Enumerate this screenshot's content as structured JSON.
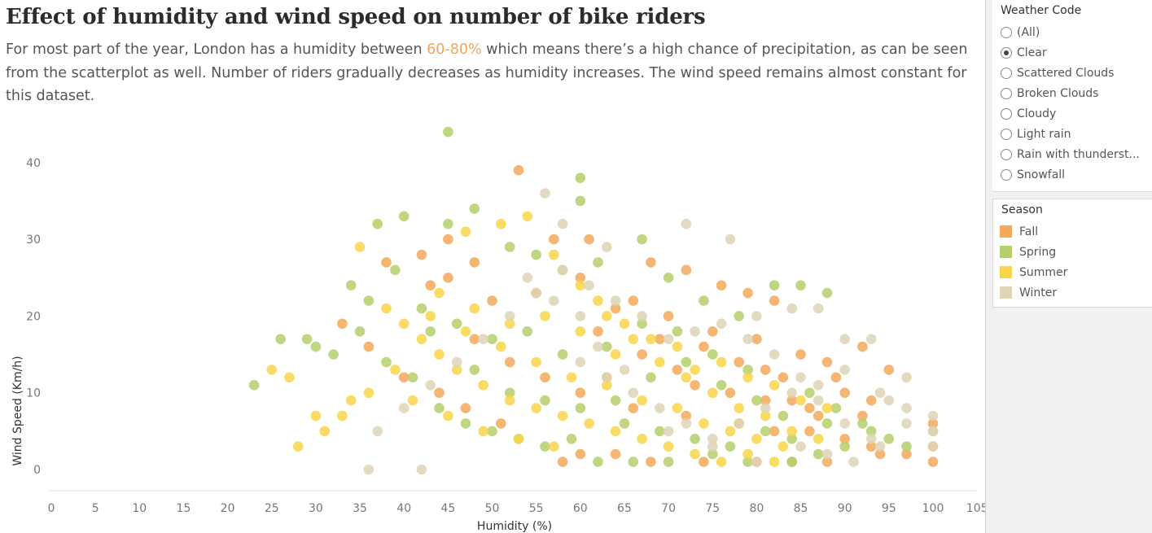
{
  "title": "Effect of humidity and wind speed on number of bike riders",
  "subtitle": {
    "before": "For most part of the year, London has a humidity between ",
    "highlight": "60-80%",
    "after": " which means there’s a high chance of precipitation, as can be seen from the scatterplot as well. Number of riders gradually decreases as humidity increases. The wind speed remains almost constant for this dataset."
  },
  "colors": {
    "highlight": "#F2A45C",
    "Fall": "#F4A95A",
    "Spring": "#B5CF6B",
    "Summer": "#F8D54A",
    "Winter": "#DED5B6"
  },
  "weather_filter": {
    "title": "Weather Code",
    "selected": "Clear",
    "options": [
      "(All)",
      "Clear",
      "Scattered Clouds",
      "Broken Clouds",
      "Cloudy",
      "Light rain",
      "Rain with thunderst...",
      "Snowfall"
    ]
  },
  "season_legend": {
    "title": "Season",
    "items": [
      "Fall",
      "Spring",
      "Summer",
      "Winter"
    ]
  },
  "chart_data": {
    "type": "scatter",
    "xlabel": "Humidity (%)",
    "ylabel": "Wind Speed (Km/h)",
    "xlim": [
      0,
      105
    ],
    "ylim": [
      0,
      45
    ],
    "xticks": [
      0,
      5,
      10,
      15,
      20,
      25,
      30,
      35,
      40,
      45,
      50,
      55,
      60,
      65,
      70,
      75,
      80,
      85,
      90,
      95,
      100,
      105
    ],
    "yticks": [
      0,
      10,
      20,
      30,
      40
    ],
    "grid": false,
    "legend": "right",
    "series": [
      {
        "name": "Fall",
        "points": [
          [
            53,
            39
          ],
          [
            57,
            30
          ],
          [
            61,
            30
          ],
          [
            68,
            27
          ],
          [
            72,
            26
          ],
          [
            76,
            24
          ],
          [
            79,
            23
          ],
          [
            82,
            22
          ],
          [
            42,
            28
          ],
          [
            38,
            27
          ],
          [
            45,
            25
          ],
          [
            50,
            22
          ],
          [
            55,
            23
          ],
          [
            60,
            25
          ],
          [
            64,
            21
          ],
          [
            70,
            20
          ],
          [
            75,
            18
          ],
          [
            80,
            17
          ],
          [
            85,
            15
          ],
          [
            88,
            14
          ],
          [
            90,
            10
          ],
          [
            93,
            9
          ],
          [
            95,
            13
          ],
          [
            100,
            6
          ],
          [
            100,
            3
          ],
          [
            100,
            1
          ],
          [
            97,
            2
          ],
          [
            94,
            2
          ],
          [
            88,
            1
          ],
          [
            84,
            1
          ],
          [
            80,
            1
          ],
          [
            74,
            1
          ],
          [
            68,
            1
          ],
          [
            64,
            2
          ],
          [
            60,
            2
          ],
          [
            58,
            1
          ],
          [
            48,
            17
          ],
          [
            52,
            14
          ],
          [
            56,
            12
          ],
          [
            60,
            10
          ],
          [
            66,
            8
          ],
          [
            72,
            7
          ],
          [
            78,
            6
          ],
          [
            82,
            5
          ],
          [
            86,
            8
          ],
          [
            89,
            12
          ],
          [
            92,
            16
          ],
          [
            33,
            19
          ],
          [
            36,
            16
          ],
          [
            40,
            12
          ],
          [
            44,
            10
          ],
          [
            47,
            8
          ],
          [
            51,
            6
          ],
          [
            63,
            12
          ],
          [
            67,
            15
          ],
          [
            71,
            13
          ],
          [
            73,
            11
          ],
          [
            77,
            10
          ],
          [
            81,
            9
          ],
          [
            83,
            12
          ],
          [
            87,
            7
          ],
          [
            92,
            7
          ],
          [
            45,
            30
          ],
          [
            48,
            27
          ],
          [
            43,
            24
          ],
          [
            62,
            18
          ],
          [
            66,
            22
          ],
          [
            69,
            17
          ],
          [
            74,
            16
          ],
          [
            78,
            14
          ],
          [
            81,
            13
          ],
          [
            84,
            9
          ],
          [
            86,
            5
          ],
          [
            90,
            4
          ],
          [
            93,
            3
          ]
        ]
      },
      {
        "name": "Spring",
        "points": [
          [
            45,
            44
          ],
          [
            60,
            38
          ],
          [
            60,
            35
          ],
          [
            40,
            33
          ],
          [
            37,
            32
          ],
          [
            45,
            32
          ],
          [
            48,
            34
          ],
          [
            52,
            29
          ],
          [
            55,
            28
          ],
          [
            58,
            26
          ],
          [
            62,
            27
          ],
          [
            67,
            30
          ],
          [
            70,
            25
          ],
          [
            74,
            22
          ],
          [
            78,
            20
          ],
          [
            82,
            24
          ],
          [
            85,
            24
          ],
          [
            88,
            23
          ],
          [
            23,
            11
          ],
          [
            26,
            17
          ],
          [
            29,
            17
          ],
          [
            30,
            16
          ],
          [
            32,
            15
          ],
          [
            35,
            18
          ],
          [
            38,
            14
          ],
          [
            41,
            12
          ],
          [
            44,
            8
          ],
          [
            47,
            6
          ],
          [
            50,
            5
          ],
          [
            53,
            4
          ],
          [
            56,
            3
          ],
          [
            59,
            4
          ],
          [
            62,
            1
          ],
          [
            66,
            1
          ],
          [
            70,
            1
          ],
          [
            75,
            2
          ],
          [
            79,
            1
          ],
          [
            84,
            1
          ],
          [
            87,
            2
          ],
          [
            90,
            3
          ],
          [
            93,
            5
          ],
          [
            97,
            3
          ],
          [
            100,
            5
          ],
          [
            64,
            9
          ],
          [
            68,
            12
          ],
          [
            72,
            14
          ],
          [
            76,
            11
          ],
          [
            80,
            9
          ],
          [
            83,
            7
          ],
          [
            86,
            10
          ],
          [
            89,
            8
          ],
          [
            92,
            6
          ],
          [
            95,
            4
          ],
          [
            42,
            21
          ],
          [
            46,
            19
          ],
          [
            50,
            17
          ],
          [
            54,
            18
          ],
          [
            58,
            15
          ],
          [
            34,
            24
          ],
          [
            36,
            22
          ],
          [
            39,
            26
          ],
          [
            43,
            18
          ],
          [
            48,
            13
          ],
          [
            52,
            10
          ],
          [
            56,
            9
          ],
          [
            60,
            8
          ],
          [
            65,
            6
          ],
          [
            69,
            5
          ],
          [
            73,
            4
          ],
          [
            77,
            3
          ],
          [
            81,
            5
          ],
          [
            84,
            4
          ],
          [
            88,
            6
          ],
          [
            63,
            16
          ],
          [
            67,
            19
          ],
          [
            71,
            18
          ],
          [
            75,
            15
          ],
          [
            79,
            13
          ]
        ]
      },
      {
        "name": "Summer",
        "points": [
          [
            25,
            13
          ],
          [
            27,
            12
          ],
          [
            28,
            3
          ],
          [
            30,
            7
          ],
          [
            31,
            5
          ],
          [
            33,
            7
          ],
          [
            34,
            9
          ],
          [
            35,
            29
          ],
          [
            38,
            21
          ],
          [
            40,
            19
          ],
          [
            42,
            17
          ],
          [
            44,
            15
          ],
          [
            46,
            13
          ],
          [
            49,
            11
          ],
          [
            52,
            9
          ],
          [
            55,
            8
          ],
          [
            58,
            7
          ],
          [
            61,
            6
          ],
          [
            64,
            5
          ],
          [
            67,
            4
          ],
          [
            70,
            3
          ],
          [
            73,
            2
          ],
          [
            76,
            1
          ],
          [
            79,
            2
          ],
          [
            82,
            1
          ],
          [
            47,
            31
          ],
          [
            51,
            32
          ],
          [
            54,
            33
          ],
          [
            57,
            28
          ],
          [
            60,
            24
          ],
          [
            63,
            20
          ],
          [
            66,
            17
          ],
          [
            69,
            14
          ],
          [
            72,
            12
          ],
          [
            75,
            10
          ],
          [
            78,
            8
          ],
          [
            81,
            7
          ],
          [
            84,
            5
          ],
          [
            87,
            4
          ],
          [
            43,
            20
          ],
          [
            47,
            18
          ],
          [
            51,
            16
          ],
          [
            55,
            14
          ],
          [
            59,
            12
          ],
          [
            63,
            11
          ],
          [
            67,
            9
          ],
          [
            71,
            8
          ],
          [
            74,
            6
          ],
          [
            77,
            5
          ],
          [
            80,
            4
          ],
          [
            83,
            3
          ],
          [
            41,
            9
          ],
          [
            45,
            7
          ],
          [
            49,
            5
          ],
          [
            53,
            4
          ],
          [
            57,
            3
          ],
          [
            62,
            22
          ],
          [
            65,
            19
          ],
          [
            68,
            17
          ],
          [
            71,
            16
          ],
          [
            76,
            14
          ],
          [
            79,
            12
          ],
          [
            82,
            11
          ],
          [
            85,
            9
          ],
          [
            88,
            8
          ],
          [
            36,
            10
          ],
          [
            39,
            13
          ],
          [
            44,
            23
          ],
          [
            48,
            21
          ],
          [
            52,
            19
          ],
          [
            56,
            20
          ],
          [
            60,
            18
          ],
          [
            64,
            15
          ],
          [
            73,
            13
          ]
        ]
      },
      {
        "name": "Winter",
        "points": [
          [
            56,
            36
          ],
          [
            58,
            32
          ],
          [
            63,
            29
          ],
          [
            72,
            32
          ],
          [
            77,
            30
          ],
          [
            80,
            20
          ],
          [
            84,
            21
          ],
          [
            87,
            21
          ],
          [
            90,
            17
          ],
          [
            93,
            17
          ],
          [
            97,
            12
          ],
          [
            97,
            8
          ],
          [
            100,
            7
          ],
          [
            100,
            5
          ],
          [
            100,
            3
          ],
          [
            97,
            6
          ],
          [
            95,
            9
          ],
          [
            93,
            4
          ],
          [
            90,
            6
          ],
          [
            87,
            9
          ],
          [
            85,
            12
          ],
          [
            82,
            15
          ],
          [
            79,
            17
          ],
          [
            76,
            19
          ],
          [
            73,
            18
          ],
          [
            70,
            17
          ],
          [
            67,
            20
          ],
          [
            64,
            22
          ],
          [
            61,
            24
          ],
          [
            58,
            26
          ],
          [
            55,
            23
          ],
          [
            52,
            20
          ],
          [
            49,
            17
          ],
          [
            46,
            14
          ],
          [
            43,
            11
          ],
          [
            40,
            8
          ],
          [
            37,
            5
          ],
          [
            36,
            0
          ],
          [
            42,
            0
          ],
          [
            70,
            5
          ],
          [
            75,
            3
          ],
          [
            80,
            1
          ],
          [
            85,
            3
          ],
          [
            88,
            2
          ],
          [
            91,
            1
          ],
          [
            94,
            3
          ],
          [
            60,
            14
          ],
          [
            63,
            12
          ],
          [
            66,
            10
          ],
          [
            69,
            8
          ],
          [
            72,
            6
          ],
          [
            75,
            4
          ],
          [
            78,
            6
          ],
          [
            81,
            8
          ],
          [
            84,
            10
          ],
          [
            87,
            11
          ],
          [
            90,
            13
          ],
          [
            94,
            10
          ],
          [
            54,
            25
          ],
          [
            57,
            22
          ],
          [
            60,
            20
          ],
          [
            62,
            16
          ],
          [
            65,
            13
          ]
        ]
      }
    ]
  }
}
